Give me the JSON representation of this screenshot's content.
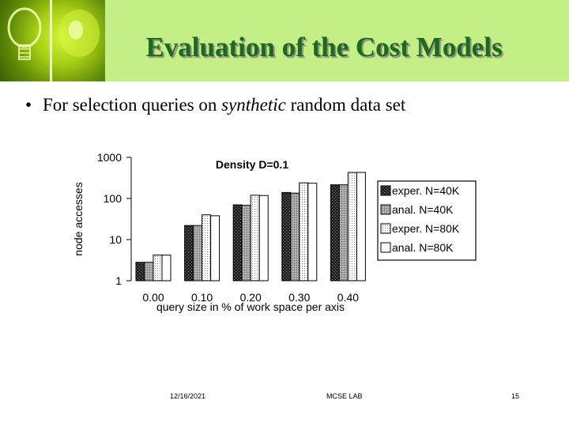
{
  "slide": {
    "title": "Evaluation of the Cost Models",
    "bullet": {
      "before": "For selection queries on ",
      "emph": "synthetic",
      "after": " random data set"
    }
  },
  "footer": {
    "date": "12/16/2021",
    "center": "MCSE LAB",
    "page": "15"
  },
  "chart_data": {
    "type": "bar",
    "title": "Density D=0.1",
    "xlabel": "query size in % of work space per axis",
    "ylabel": "node accesses",
    "yscale": "log",
    "ylim": [
      1,
      1000
    ],
    "yticks": [
      "1",
      "10",
      "100",
      "1000"
    ],
    "categories": [
      "0.00",
      "0.10",
      "0.20",
      "0.30",
      "0.40"
    ],
    "legend_position": "right",
    "series": [
      {
        "name": "exper. N=40K",
        "values": [
          2.8,
          22,
          70,
          140,
          215
        ],
        "fill": "dark"
      },
      {
        "name": "anal. N=40K",
        "values": [
          2.8,
          22,
          68,
          135,
          215
        ],
        "fill": "grid"
      },
      {
        "name": "exper. N=80K",
        "values": [
          4.2,
          40,
          120,
          240,
          430
        ],
        "fill": "dots"
      },
      {
        "name": "anal. N=80K",
        "values": [
          4.2,
          38,
          118,
          235,
          430
        ],
        "fill": "white"
      }
    ]
  }
}
